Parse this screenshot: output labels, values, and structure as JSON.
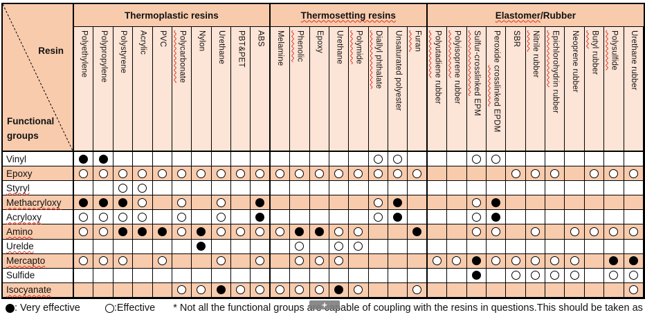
{
  "colors": {
    "group_header_peach": "#F8CBAD",
    "column_header_light_peach": "#FCE4D6",
    "alt_row_peach": "#F8CBAD",
    "border_black": "#000000",
    "spellcheck_red": "#E0301E",
    "overlay_grey": "#7D7D7D"
  },
  "corner": {
    "resin_label": "Resin",
    "functional_groups_label": "Functional groups"
  },
  "table": {
    "groups": [
      {
        "label": "Thermoplastic resins",
        "segs": [
          {
            "t": "Thermoplastic resins"
          }
        ],
        "columns": [
          {
            "label": "Polyethylene",
            "segs": [
              {
                "t": "Polyethylene"
              }
            ]
          },
          {
            "label": "Polypropylene",
            "segs": [
              {
                "t": "Polypropylene"
              }
            ]
          },
          {
            "label": "Polystyrene",
            "segs": [
              {
                "t": "Polystyrene"
              }
            ]
          },
          {
            "label": "Acrylic",
            "segs": [
              {
                "t": "Acrylic"
              }
            ]
          },
          {
            "label": "PVC",
            "segs": [
              {
                "t": "PVC"
              }
            ]
          },
          {
            "label": "Polycarbonate",
            "segs": [
              {
                "t": "Polycarbonate",
                "sq": true
              }
            ]
          },
          {
            "label": "Nylon",
            "segs": [
              {
                "t": "Nylon"
              }
            ]
          },
          {
            "label": "Urethane",
            "segs": [
              {
                "t": "Urethane"
              }
            ]
          },
          {
            "label": "PBT&PET",
            "segs": [
              {
                "t": "PBT&PET"
              }
            ]
          },
          {
            "label": "ABS",
            "segs": [
              {
                "t": "ABS"
              }
            ]
          }
        ]
      },
      {
        "label": "Thermosetting resins",
        "segs": [
          {
            "t": "Thermosetting resins",
            "sq": true
          }
        ],
        "columns": [
          {
            "label": "Melamine",
            "segs": [
              {
                "t": "Melamine"
              }
            ]
          },
          {
            "label": "Phenolic",
            "segs": [
              {
                "t": "Phenolic",
                "sq": true
              }
            ]
          },
          {
            "label": "Epoxy",
            "segs": [
              {
                "t": "Epoxy"
              }
            ]
          },
          {
            "label": "Urethane",
            "segs": [
              {
                "t": "Urethane"
              }
            ]
          },
          {
            "label": "Polymide",
            "segs": [
              {
                "t": "Polymide",
                "sq": true
              }
            ]
          },
          {
            "label": "Diallyl phthalate",
            "segs": [
              {
                "t": "Diallyl phthalate",
                "sq": true
              }
            ]
          },
          {
            "label": "Unsaturated polyester",
            "segs": [
              {
                "t": "Unsaturated polyester"
              }
            ]
          },
          {
            "label": "Furan",
            "segs": [
              {
                "t": "Furan",
                "sq": true
              }
            ]
          }
        ]
      },
      {
        "label": "Elastomer/Rubber",
        "segs": [
          {
            "t": "Elastomer",
            "sq": true
          },
          {
            "t": "/Rubber"
          }
        ],
        "columns": [
          {
            "label": "Polyutadiene rubber",
            "segs": [
              {
                "t": "Polyutadiene",
                "sq": true
              },
              {
                "t": " rubber"
              }
            ]
          },
          {
            "label": "Polyisoprene rubber",
            "segs": [
              {
                "t": "Polyisoprene",
                "sq": true
              },
              {
                "t": " rubber"
              }
            ]
          },
          {
            "label": "Sulfur-crosslinked EPM",
            "segs": [
              {
                "t": "Sulfur-crosslinked",
                "sq": true
              },
              {
                "t": " EPM"
              }
            ]
          },
          {
            "label": "Peroxide crosslinked EPDM",
            "segs": [
              {
                "t": "Peroxide "
              },
              {
                "t": "crosslinked",
                "sq": true
              },
              {
                "t": " EPDM"
              }
            ]
          },
          {
            "label": "SBR",
            "segs": [
              {
                "t": "SBR"
              }
            ]
          },
          {
            "label": "Nitrile rubber",
            "segs": [
              {
                "t": "Nitrile",
                "sq": true
              },
              {
                "t": " rubber"
              }
            ]
          },
          {
            "label": "Epichlorohydrin rubber",
            "segs": [
              {
                "t": "Epichlorohydrin",
                "sq": true
              },
              {
                "t": " rubber"
              }
            ]
          },
          {
            "label": "Neoprene rubber",
            "segs": [
              {
                "t": "Neoprene rubber"
              }
            ]
          },
          {
            "label": "Butyl rubber",
            "segs": [
              {
                "t": "Butyl",
                "sq": true
              },
              {
                "t": " rubber"
              }
            ]
          },
          {
            "label": "Polysulfide",
            "segs": [
              {
                "t": "Polysulfide",
                "sq": true
              }
            ]
          },
          {
            "label": "Urethane rubber",
            "segs": [
              {
                "t": "Urethane rubber"
              }
            ]
          }
        ]
      }
    ],
    "cell_legend": {
      "F": "very effective (filled circle)",
      "O": "effective (open circle)",
      ".": "blank"
    },
    "rows": [
      {
        "label": "Vinyl",
        "segs": [
          {
            "t": "Vinyl"
          }
        ],
        "cells": "FF.............OO...OO......."
      },
      {
        "label": "Epoxy",
        "segs": [
          {
            "t": "Epoxy"
          }
        ],
        "cells": "OOOOOOOOOOOOOOOOOO....OOO.OOO"
      },
      {
        "label": "Styryl",
        "segs": [
          {
            "t": "Styryl",
            "sq": true
          }
        ],
        "cells": "..OO........................."
      },
      {
        "label": "Methacryloxy",
        "segs": [
          {
            "t": "Methacryloxy",
            "sq": true
          }
        ],
        "cells": "FFFO.O.O.F.....OF...OF......."
      },
      {
        "label": "Acryloxy",
        "segs": [
          {
            "t": "Acryloxy",
            "sq": true
          }
        ],
        "cells": "OOOO.O.O.F.....OF...OF......."
      },
      {
        "label": "Amino",
        "segs": [
          {
            "t": "Amino",
            "sq": true
          }
        ],
        "cells": "OOFFFOFOOOOFFOO..F..OO.O.OOOO"
      },
      {
        "label": "Urelde",
        "segs": [
          {
            "t": "Urelde",
            "sq": true
          }
        ],
        "cells": "......F....O.OO.............."
      },
      {
        "label": "Mercapto",
        "segs": [
          {
            "t": "Mercapto",
            "sq": true
          }
        ],
        "cells": "OOO.O..O.O.OOO....OOFOOOOO.FF"
      },
      {
        "label": "Sulfide",
        "segs": [
          {
            "t": "Sulfide"
          }
        ],
        "cells": "....................F.OOOO.OO"
      },
      {
        "label": "Isocyanate",
        "segs": [
          {
            "t": "Isocyanate",
            "sq": true
          }
        ],
        "cells": ".....OOFOOOOOFO..O..........O"
      }
    ]
  },
  "legend": {
    "very_label": ": Very effective",
    "eff_label": ":Effective",
    "note": "* Not all the functional groups are capable of coupling with the resins in questions.This should be taken as a guide."
  },
  "overlay": {
    "plus_label": "+"
  }
}
